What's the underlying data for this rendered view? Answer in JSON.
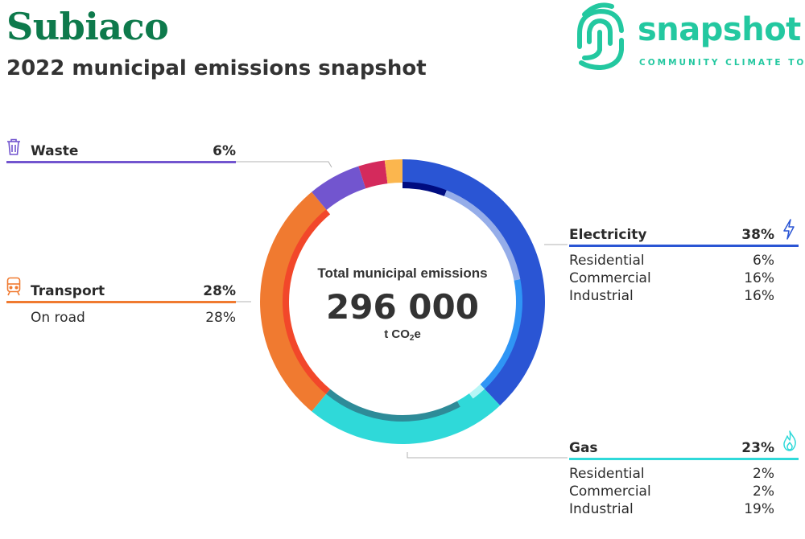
{
  "header": {
    "title": "Subiaco",
    "subtitle": "2022 municipal emissions snapshot"
  },
  "logo": {
    "word": "snapshot",
    "tagline": "COMMUNITY CLIMATE TOOL",
    "icon": "fingerprint-logo-icon",
    "color": "#23c8a0"
  },
  "center": {
    "label": "Total municipal emissions",
    "value": "296 000",
    "unit_prefix": "t CO",
    "unit_sub": "2",
    "unit_suffix": "e"
  },
  "chart_data": {
    "type": "pie",
    "style": "donut",
    "total": 296000,
    "categories": [
      {
        "name": "Electricity",
        "percent": "38%",
        "value": 38,
        "color": "#2a55d4",
        "icon": "lightning-icon",
        "subcategories": [
          {
            "name": "Residential",
            "percent": "6%",
            "value": 6,
            "color": "#000c80"
          },
          {
            "name": "Commercial",
            "percent": "16%",
            "value": 16,
            "color": "#95ade9"
          },
          {
            "name": "Industrial",
            "percent": "16%",
            "value": 16,
            "color": "#2f95f5"
          }
        ]
      },
      {
        "name": "Gas",
        "percent": "23%",
        "value": 23,
        "color": "#2fd9d9",
        "icon": "flame-icon",
        "subcategories": [
          {
            "name": "Residential",
            "percent": "2%",
            "value": 2,
            "color": "#b6f6f6"
          },
          {
            "name": "Commercial",
            "percent": "2%",
            "value": 2,
            "color": "#2fd9d9"
          },
          {
            "name": "Industrial",
            "percent": "19%",
            "value": 19,
            "color": "#2e8b98"
          }
        ]
      },
      {
        "name": "Transport",
        "percent": "28%",
        "value": 28,
        "color": "#f07a30",
        "icon": "train-icon",
        "subcategories": [
          {
            "name": "On road",
            "percent": "28%",
            "value": 28,
            "color": "#f2472a"
          }
        ]
      },
      {
        "name": "Waste",
        "percent": "6%",
        "value": 6,
        "color": "#7255cf",
        "icon": "trash-bin-icon",
        "subcategories": []
      },
      {
        "name": "",
        "percent": "",
        "value": 3,
        "color": "#d42a5c",
        "subcategories": []
      },
      {
        "name": "",
        "percent": "",
        "value": 2,
        "color": "#fbb64e",
        "subcategories": []
      }
    ]
  }
}
